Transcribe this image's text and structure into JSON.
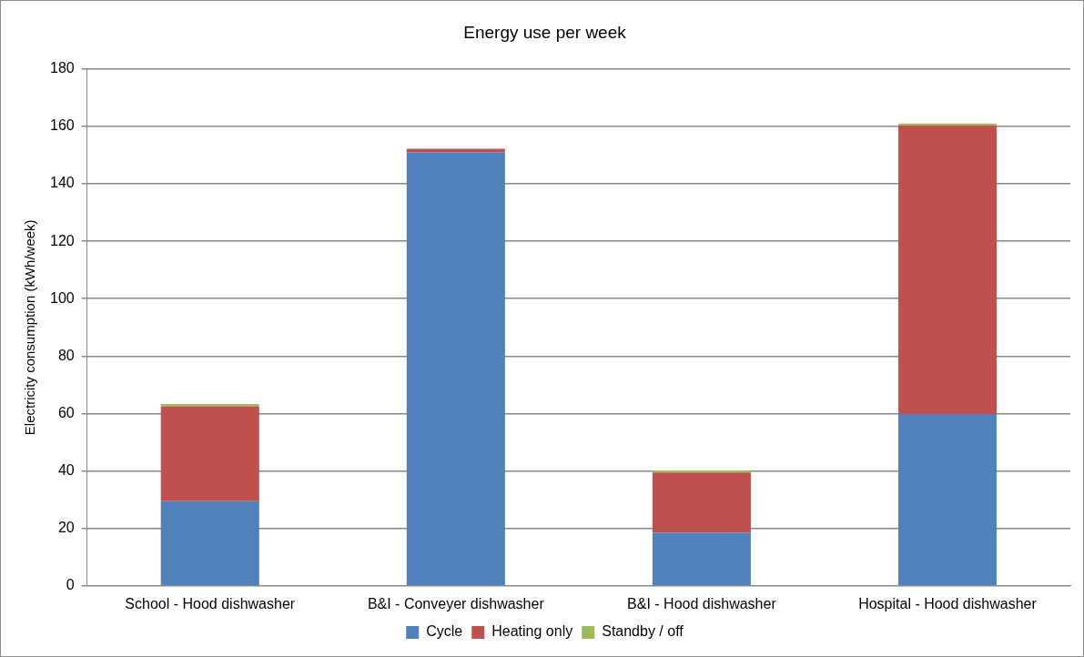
{
  "chart_data": {
    "type": "bar",
    "title": "Energy use per week",
    "ylabel": "Electricity consumption (kWh/week)",
    "categories": [
      "School - Hood dishwasher",
      "B&I - Conveyer dishwasher",
      "B&I - Hood dishwasher",
      "Hospital - Hood dishwasher"
    ],
    "series": [
      {
        "name": "Cycle",
        "color": "#4f81bd",
        "values": [
          29.5,
          151,
          18.5,
          59.8
        ]
      },
      {
        "name": "Heating only",
        "color": "#c0504d",
        "values": [
          33,
          1.2,
          21,
          100.6
        ]
      },
      {
        "name": "Standby / off",
        "color": "#9bbb59",
        "values": [
          0.8,
          0,
          0.7,
          0.6
        ]
      }
    ],
    "stacked": true,
    "ylim": [
      0,
      180
    ],
    "yticks": [
      0,
      20,
      40,
      60,
      80,
      100,
      120,
      140,
      160,
      180
    ],
    "grid": "y",
    "legend": "bottom"
  }
}
